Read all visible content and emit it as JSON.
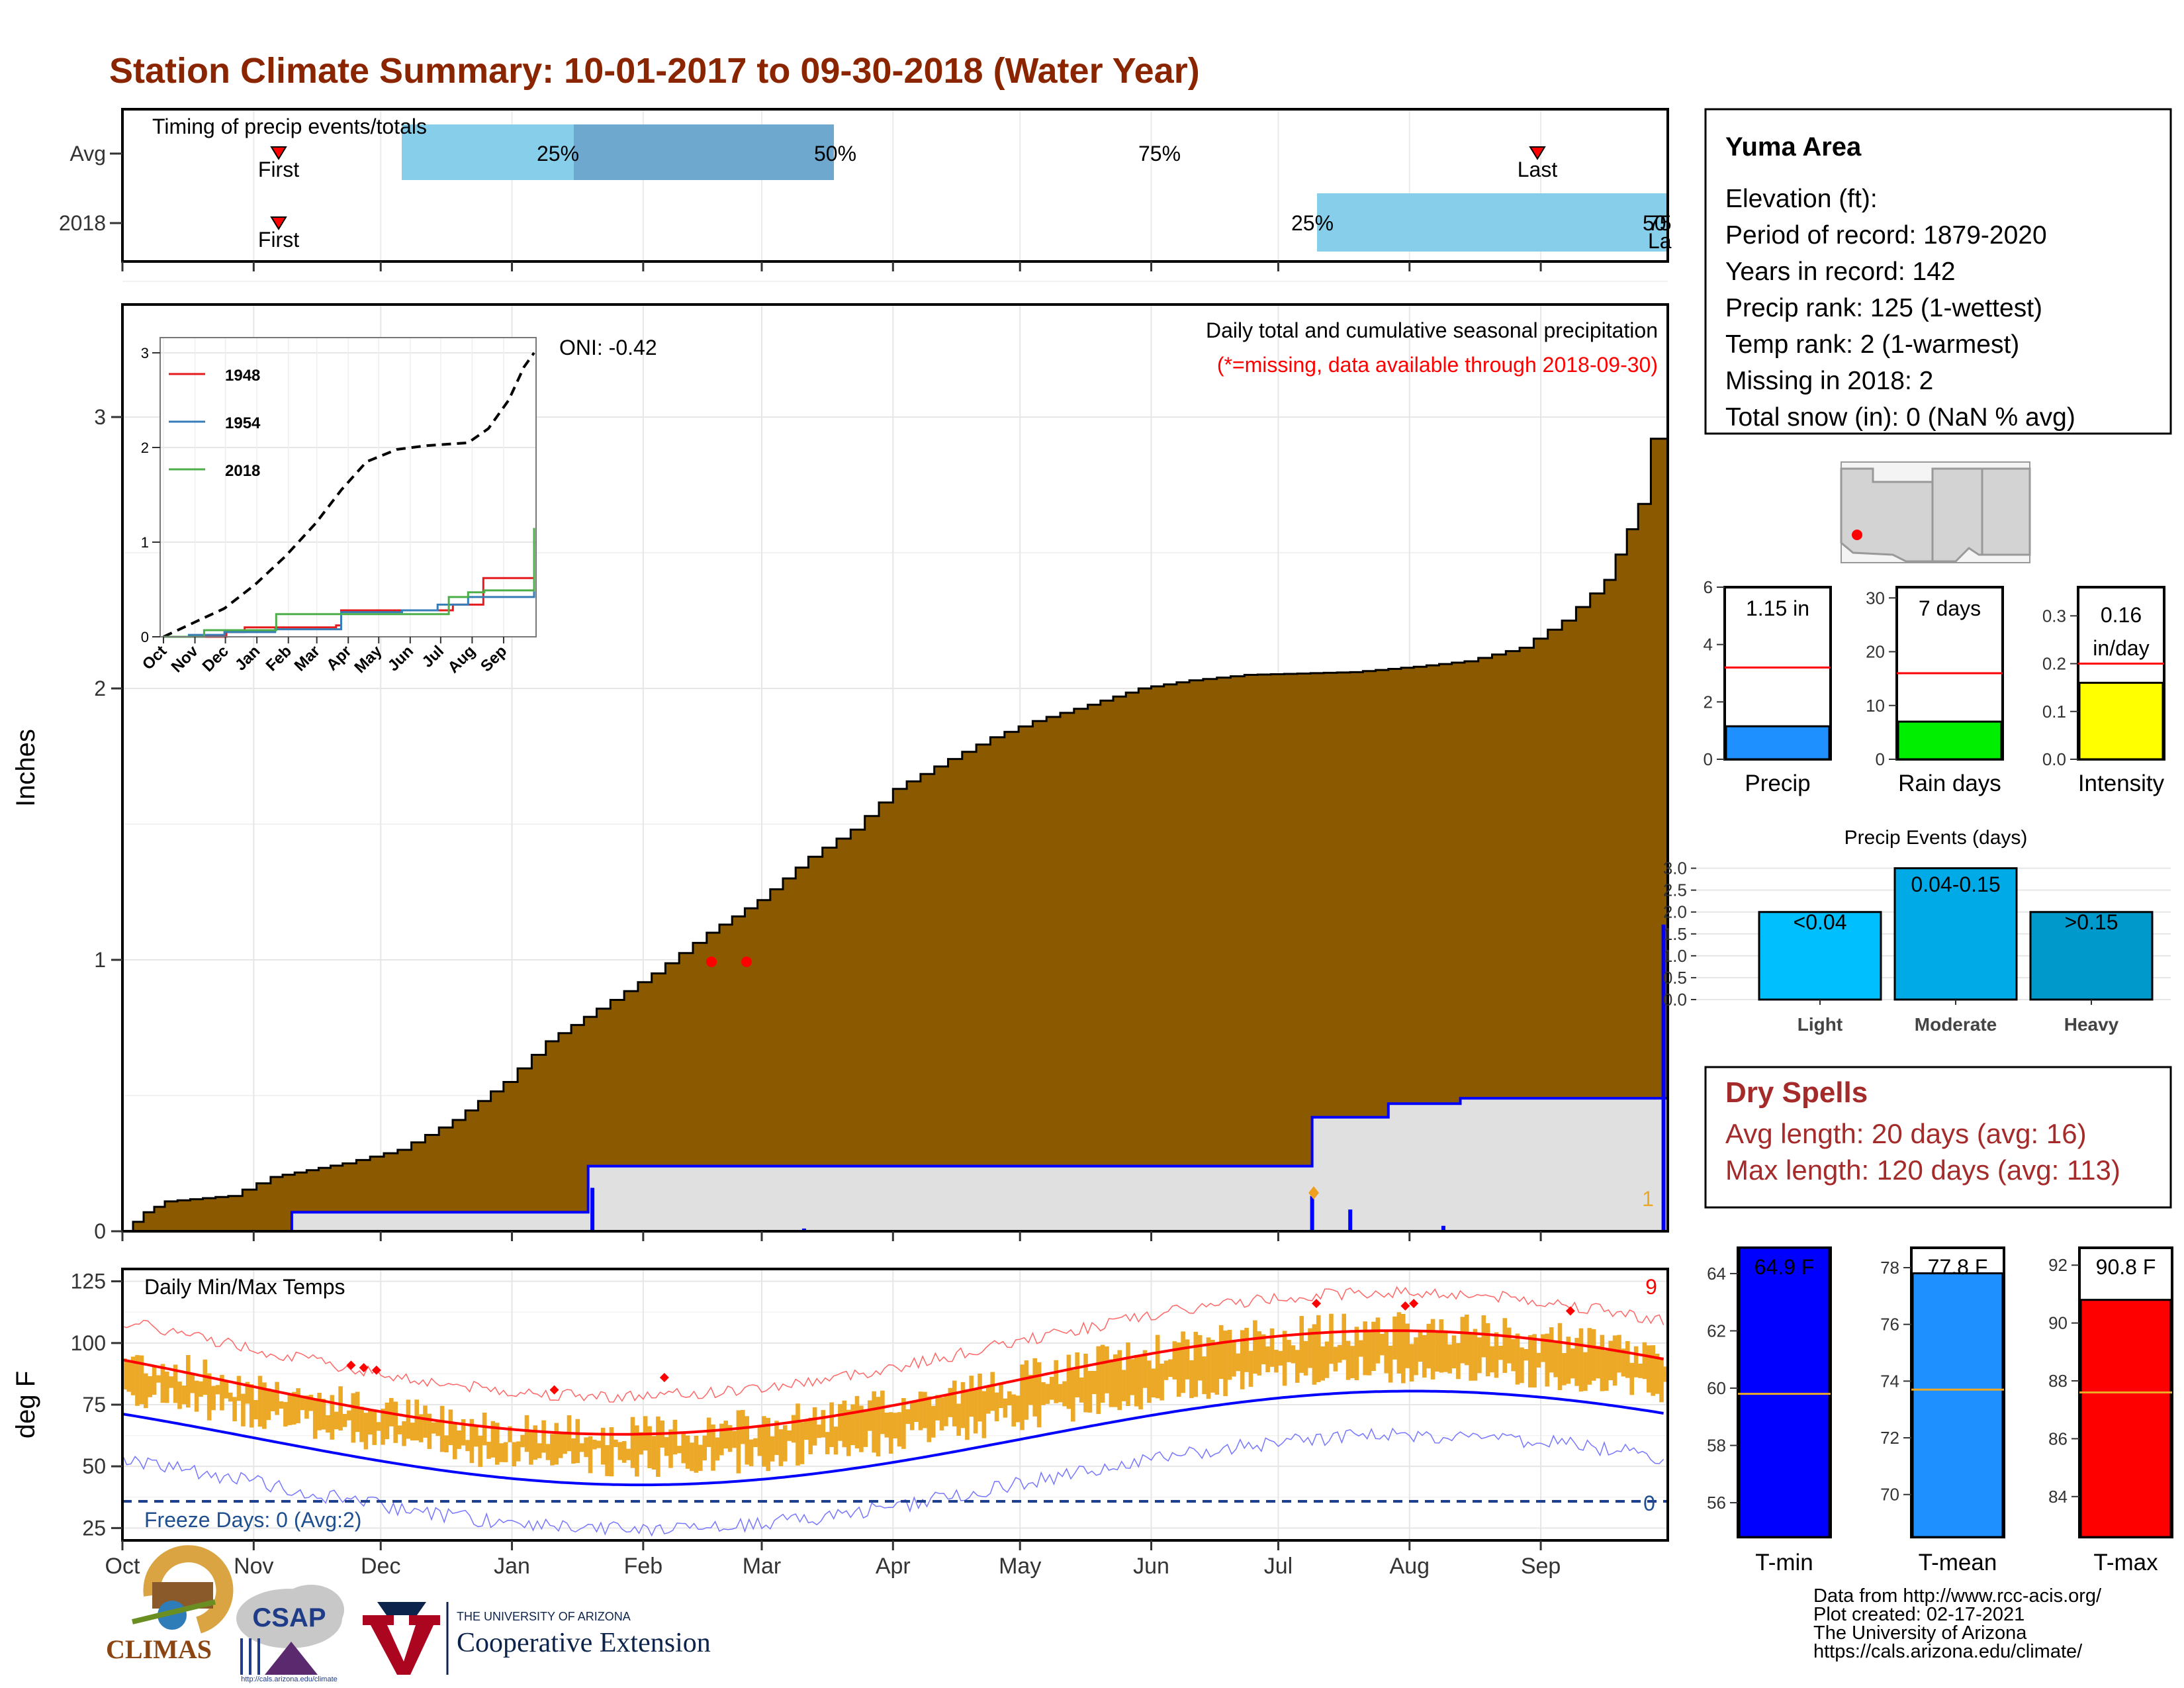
{
  "title": "Station Climate Summary: 10-01-2017 to 09-30-2018 (Water Year)",
  "colors": {
    "title": "#8B2500",
    "brown": "#8B5A00",
    "gray_fill": "#E0E0E0",
    "blue": "#0000FF",
    "light_blue": "#87CEEB",
    "mid_blue": "#6FA8CF",
    "orange": "#EBA927",
    "red": "#FF0000",
    "dry_text": "#A52A2A",
    "light_bar": "#00BFFF",
    "moderate_bar": "#00AAE6",
    "heavy_bar": "#0099CC"
  },
  "months": [
    "Oct",
    "Nov",
    "Dec",
    "Jan",
    "Feb",
    "Mar",
    "Apr",
    "May",
    "Jun",
    "Jul",
    "Aug",
    "Sep"
  ],
  "timing": {
    "label": "Timing of precip events/totals",
    "rows": [
      "Avg",
      "2018"
    ],
    "first_label": "First",
    "last_label": "Last",
    "avg_pcts": [
      "25%",
      "50%",
      "75%"
    ],
    "y2018_pcts": [
      "25%",
      "50",
      "75"
    ],
    "y2018_last": "La"
  },
  "main": {
    "y_axis_label": "Inches",
    "y_ticks": [
      "0",
      "1",
      "2",
      "3"
    ],
    "oni": "ONI: -0.42",
    "subtitle": "Daily total and cumulative seasonal precipitation",
    "missing_note": "(*=missing, data available through 2018-09-30)",
    "corner_count": "1"
  },
  "inset": {
    "months": [
      "Oct",
      "Nov",
      "Dec",
      "Jan",
      "Feb",
      "Mar",
      "Apr",
      "May",
      "Jun",
      "Jul",
      "Aug",
      "Sep"
    ],
    "y_ticks": [
      "0",
      "1",
      "2",
      "3"
    ],
    "legend": [
      "1948",
      "1954",
      "2018"
    ]
  },
  "station": {
    "name": "Yuma Area",
    "lines": [
      "Elevation (ft):",
      "Period of record: 1879-2020",
      "Years in record: 142",
      "Precip rank: 125 (1-wettest)",
      "Temp rank: 2 (1-warmest)",
      "Missing in 2018: 2",
      "Total snow (in): 0 (NaN % avg)"
    ]
  },
  "mini": {
    "precip": {
      "label": "Precip",
      "value_text": "1.15 in",
      "value": 1.15,
      "avg": 3.2,
      "max": 6,
      "ticks": [
        "0",
        "2",
        "4",
        "6"
      ]
    },
    "rain_days": {
      "label": "Rain days",
      "value_text": "7 days",
      "value": 7,
      "avg": 16,
      "max": 32,
      "ticks": [
        "0",
        "10",
        "20",
        "30"
      ]
    },
    "intensity": {
      "label": "Intensity",
      "value_text_1": "0.16",
      "value_text_2": "in/day",
      "value": 0.16,
      "avg": 0.2,
      "max": 0.36,
      "ticks": [
        "0.0",
        "0.1",
        "0.2",
        "0.3"
      ]
    }
  },
  "events": {
    "title": "Precip Events (days)",
    "y_ticks": [
      "0.0",
      "0.5",
      "1.0",
      "1.5",
      "2.0",
      "2.5",
      "3.0"
    ],
    "bars": [
      {
        "label": "Light",
        "range": "<0.04",
        "value": 2
      },
      {
        "label": "Moderate",
        "range": "0.04-0.15",
        "value": 3
      },
      {
        "label": "Heavy",
        "range": ">0.15",
        "value": 2
      }
    ]
  },
  "dry_spells": {
    "title": "Dry Spells",
    "avg": "Avg length: 20 days (avg: 16)",
    "max": "Max length: 120 days (avg: 113)"
  },
  "temps": {
    "label": "Daily Min/Max Temps",
    "y_axis_label": "deg F",
    "y_ticks": [
      "25",
      "50",
      "75",
      "100",
      "125"
    ],
    "freeze": "Freeze Days: 0 (Avg:2)",
    "hot_count": "9",
    "freeze_count": "0"
  },
  "temp_bars": [
    {
      "label": "T-min",
      "value_text": "64.9 F",
      "value": 64.9,
      "avg": 59.8,
      "min": 54.8,
      "max": 64.9,
      "ticks": [
        "56",
        "58",
        "60",
        "62",
        "64"
      ]
    },
    {
      "label": "T-mean",
      "value_text": "77.8 F",
      "value": 77.8,
      "avg": 73.7,
      "min": 68.5,
      "max": 78.7,
      "ticks": [
        "70",
        "72",
        "74",
        "76",
        "78"
      ]
    },
    {
      "label": "T-max",
      "value_text": "90.8 F",
      "value": 90.8,
      "avg": 87.6,
      "min": 82.6,
      "max": 92.6,
      "ticks": [
        "84",
        "86",
        "88",
        "90",
        "92"
      ]
    }
  ],
  "footer": {
    "lines": [
      "Data from http://www.rcc-acis.org/",
      "Plot created: 02-17-2021",
      "The University of Arizona",
      "https://cals.arizona.edu/climate/"
    ],
    "climas": "CLIMAS",
    "csap": "CSAP",
    "csap_url": "http://cals.arizona.edu/climate",
    "ua_small": "THE UNIVERSITY OF ARIZONA",
    "ua_big": "Cooperative Extension"
  }
}
